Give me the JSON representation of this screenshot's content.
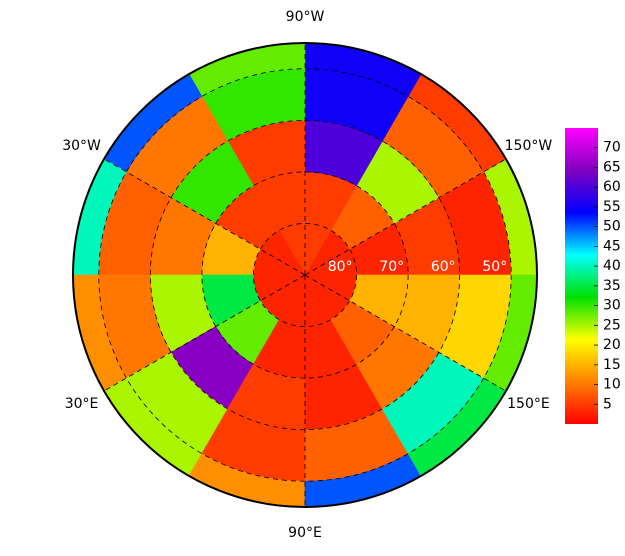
{
  "chart_data": {
    "type": "polar-map",
    "field": {
      "lat_edges": [
        90,
        80,
        70,
        60,
        50,
        45
      ],
      "lon_edges": [
        -180,
        -150,
        -120,
        -90,
        -60,
        -30,
        0,
        30,
        60,
        90,
        120,
        150,
        180
      ],
      "values": [
        [
          3,
          3,
          5,
          5,
          3,
          3,
          3,
          3,
          3,
          3,
          3,
          3
        ],
        [
          3,
          8,
          5,
          5,
          5,
          15,
          35,
          28,
          3,
          3,
          8,
          15
        ],
        [
          5,
          25,
          60,
          5,
          30,
          10,
          25,
          65,
          5,
          3,
          10,
          15
        ],
        [
          3,
          8,
          55,
          30,
          10,
          8,
          10,
          25,
          5,
          8,
          40,
          18
        ],
        [
          25,
          5,
          55,
          28,
          50,
          40,
          12,
          25,
          12,
          50,
          35,
          28
        ]
      ]
    },
    "parallels": [
      {
        "value": 80,
        "label": "80°"
      },
      {
        "value": 70,
        "label": "70°"
      },
      {
        "value": 60,
        "label": "60°"
      },
      {
        "value": 50,
        "label": "50°"
      }
    ],
    "meridians": [
      {
        "value": -90,
        "label": "90°W"
      },
      {
        "value": -30,
        "label": "30°W"
      },
      {
        "value": -150,
        "label": "150°W"
      },
      {
        "value": 30,
        "label": "30°E"
      },
      {
        "value": 150,
        "label": "150°E"
      },
      {
        "value": 90,
        "label": "90°E"
      }
    ],
    "colormap": [
      "#ff0000",
      "#ff8000",
      "#ffff00",
      "#00e000",
      "#00ffff",
      "#0000ff",
      "#8000c0",
      "#ff00ff"
    ],
    "clim": [
      0,
      75
    ],
    "cticks": [
      5,
      10,
      15,
      20,
      25,
      30,
      35,
      40,
      45,
      50,
      55,
      60,
      65,
      70
    ]
  }
}
